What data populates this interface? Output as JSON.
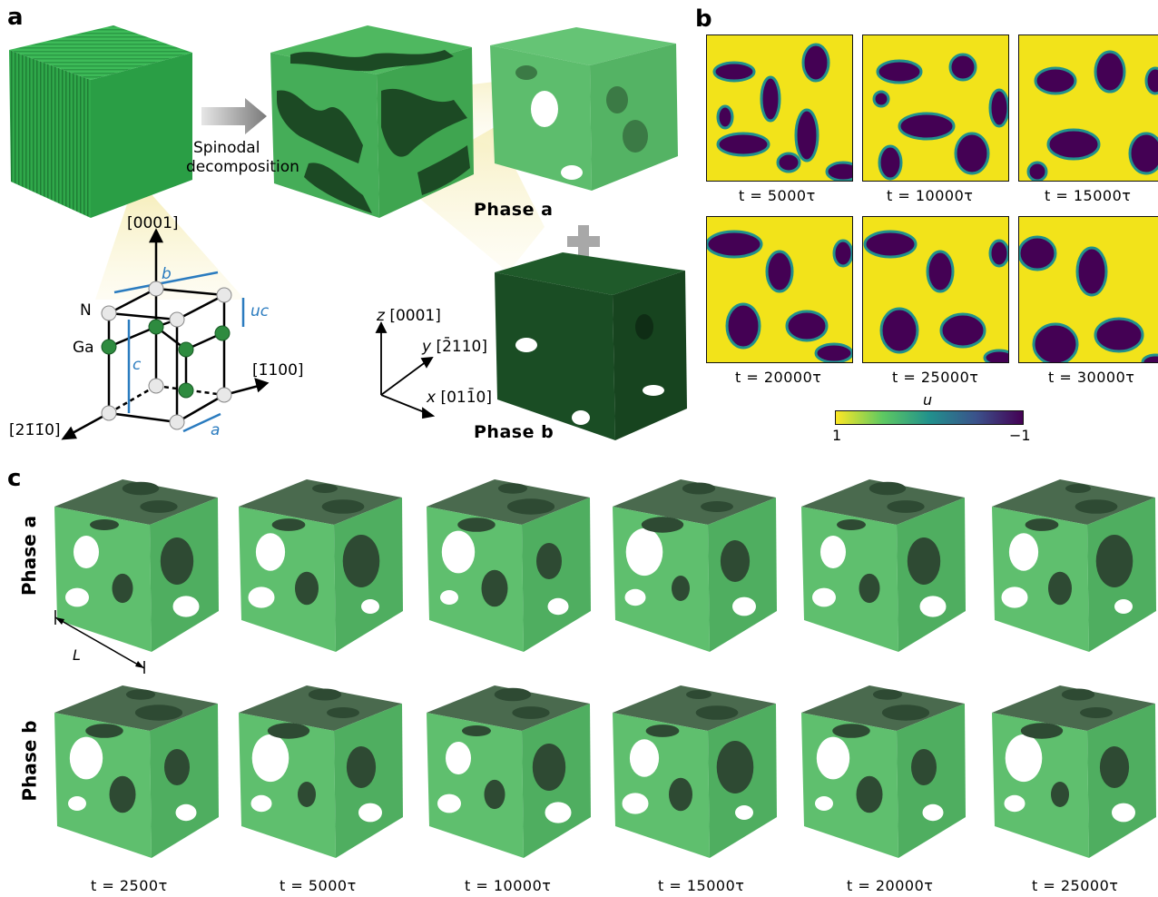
{
  "panel_labels": {
    "a": "a",
    "b": "b",
    "c": "c"
  },
  "panel_a": {
    "arrow_text_line1": "Spinodal",
    "arrow_text_line2": "decomposition",
    "phase_a": "Phase a",
    "phase_b": "Phase b",
    "crystal": {
      "axis_0001": "[0001]",
      "axis_m1100": "[1̄100]",
      "axis_2m1m10": "[21̄1̄0]",
      "atom_N": "N",
      "atom_Ga": "Ga",
      "param_a": "a",
      "param_b": "b",
      "param_c": "c",
      "param_uc": "uc"
    },
    "frame": {
      "z": "z",
      "z_dir": "[0001]",
      "y": "y",
      "y_dir": "[2̄110]",
      "x": "x",
      "x_dir": "[011̄0]"
    },
    "colors": {
      "phase_a": "#5fbf6e",
      "phase_b": "#1f5a2a",
      "initial": "#2fa84a"
    }
  },
  "panel_b": {
    "times": [
      "t = 5000τ",
      "t = 10000τ",
      "t = 15000τ",
      "t = 20000τ",
      "t = 25000τ",
      "t = 30000τ"
    ],
    "colorbar": {
      "label": "u",
      "min_label": "1",
      "max_label": "−1",
      "colors": [
        "#fde725",
        "#21918c",
        "#3b528b",
        "#440154"
      ]
    }
  },
  "panel_c": {
    "row_a": "Phase a",
    "row_b": "Phase b",
    "length_label": "L",
    "times": [
      "t = 2500τ",
      "t = 5000τ",
      "t = 10000τ",
      "t = 15000τ",
      "t = 20000τ",
      "t = 25000τ"
    ]
  }
}
